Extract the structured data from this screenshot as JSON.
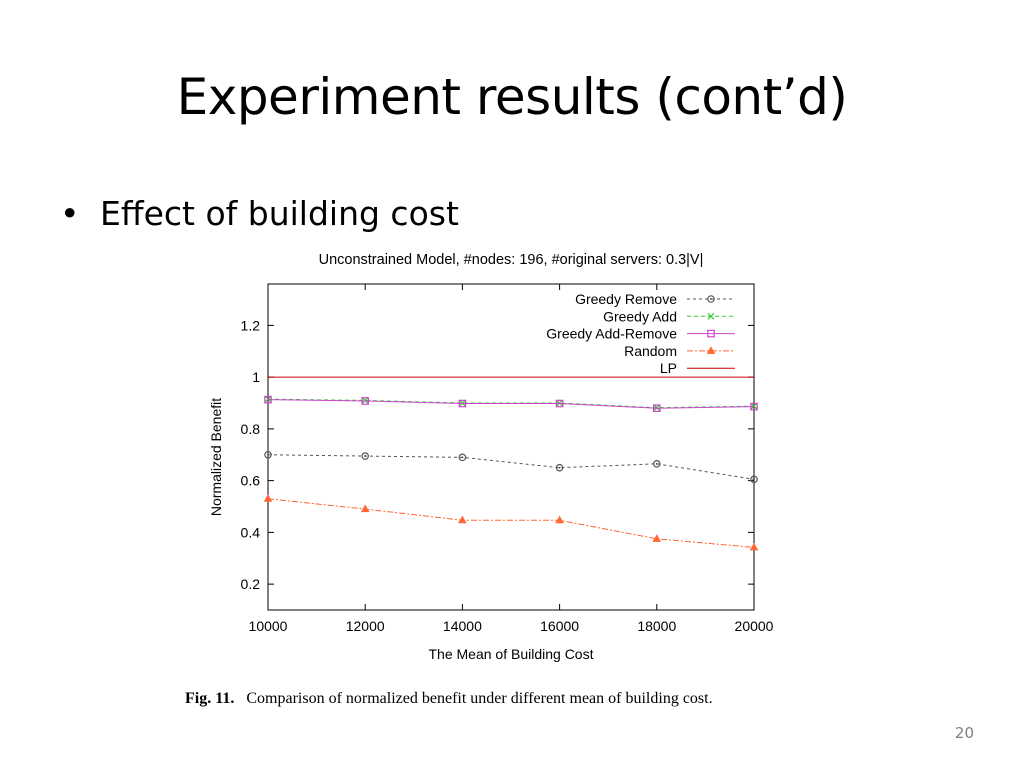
{
  "slide": {
    "title": "Experiment results (cont’d)",
    "bullet": "Effect of building cost",
    "bullet_marker": "•",
    "page_number": "20"
  },
  "figure": {
    "label": "Fig. 11.",
    "caption": "Comparison of normalized benefit under different mean of building cost."
  },
  "chart_data": {
    "type": "line",
    "title": "Unconstrained Model, #nodes: 196, #original servers: 0.3|V|",
    "xlabel": "The Mean of Building Cost",
    "ylabel": "Normalized Benefit",
    "x": [
      10000,
      12000,
      14000,
      16000,
      18000,
      20000
    ],
    "xlim": [
      10000,
      20000
    ],
    "ylim": [
      0.1,
      1.36
    ],
    "xticks": [
      "10000",
      "12000",
      "14000",
      "16000",
      "18000",
      "20000"
    ],
    "yticks": [
      0.2,
      0.4,
      0.6,
      0.8,
      1,
      1.2
    ],
    "ytick_labels": [
      "0.2",
      "0.4",
      "0.6",
      "0.8",
      "1",
      "1.2"
    ],
    "grid": false,
    "legend_position": "top-right",
    "series": [
      {
        "name": "Greedy Remove",
        "values": [
          0.7,
          0.695,
          0.69,
          0.65,
          0.665,
          0.605
        ],
        "color": "#555555",
        "marker": "circle",
        "dash": "3,3"
      },
      {
        "name": "Greedy Add",
        "values": [
          0.915,
          0.91,
          0.9,
          0.9,
          0.882,
          0.888
        ],
        "color": "#33cc33",
        "marker": "x",
        "dash": "4,3"
      },
      {
        "name": "Greedy Add-Remove",
        "values": [
          0.913,
          0.908,
          0.898,
          0.898,
          0.88,
          0.886
        ],
        "color": "#cc44cc",
        "marker": "square",
        "dash": ""
      },
      {
        "name": "Random",
        "values": [
          0.53,
          0.49,
          0.447,
          0.447,
          0.375,
          0.342
        ],
        "color": "#ff6633",
        "marker": "triangle",
        "dash": "6,2,2,2"
      },
      {
        "name": "LP",
        "values": [
          1,
          1,
          1,
          1,
          1,
          1
        ],
        "color": "#cc0000",
        "marker": "none",
        "dash": ""
      }
    ]
  }
}
